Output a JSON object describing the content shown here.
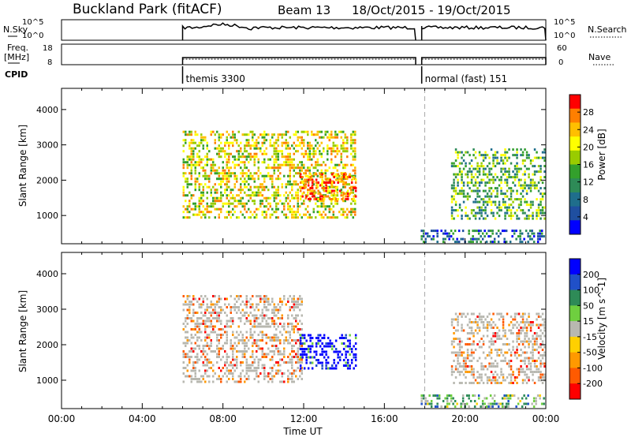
{
  "header": {
    "station": "Buckland Park (fitACF)",
    "beam": "Beam 13",
    "dates": "18/Oct/2015 - 19/Oct/2015"
  },
  "top_panels": {
    "nsky_label": "N.Sky",
    "nsky_ticks": [
      "10^5",
      "10^0"
    ],
    "nsearch_label": "N.Search",
    "nsearch_ticks": [
      "10^5",
      "10^0"
    ],
    "freq_label": "Freq.",
    "freq_unit": "[MHz]",
    "freq_ticks": [
      "18",
      "8"
    ],
    "nave_label": "Nave",
    "nave_ticks": [
      "60",
      "0"
    ],
    "cpid_label": "CPID",
    "cpid_segments": [
      {
        "start": 6.0,
        "end": 17.55,
        "label": "themis 3300"
      },
      {
        "start": 17.85,
        "end": 24.0,
        "label": "normal (fast) 151"
      }
    ]
  },
  "chart_data": [
    {
      "type": "heatmap",
      "parameter": "Power",
      "colorbar_label": "Power [dB]",
      "colorbar_ticks": [
        "28",
        "24",
        "20",
        "16",
        "12",
        "8",
        "4"
      ],
      "colorbar_colors": [
        "#ff0000",
        "#ff7f00",
        "#ffbf00",
        "#ffff00",
        "#99cc00",
        "#33a02c",
        "#2e8b57",
        "#1f6e8c",
        "#1f4fa0",
        "#0000ff"
      ],
      "ylabel": "Slant Range [km]",
      "yticks": [
        1000,
        2000,
        3000,
        4000
      ],
      "ylim": [
        200,
        4600
      ],
      "xlim": [
        0,
        24
      ],
      "gap_marker_hour": 18.0,
      "echo_regions": [
        {
          "t0": 6.0,
          "t1": 14.6,
          "r0": 900,
          "r1": 3400,
          "value_dB": 20
        },
        {
          "t0": 11.8,
          "t1": 14.6,
          "r0": 1400,
          "r1": 2200,
          "value_dB": 27
        },
        {
          "t0": 19.3,
          "t1": 24.0,
          "r0": 900,
          "r1": 2900,
          "value_dB": 14
        },
        {
          "t0": 17.8,
          "t1": 24.0,
          "r0": 200,
          "r1": 600,
          "value_dB": 10
        }
      ]
    },
    {
      "type": "heatmap",
      "parameter": "Velocity",
      "colorbar_label": "Velocity [m s^-1]",
      "colorbar_ticks": [
        "200",
        "100",
        "50",
        "15",
        "-15",
        "-50",
        "-100",
        "-200"
      ],
      "colorbar_colors": [
        "#0000ff",
        "#2050c8",
        "#2e8b57",
        "#6fcf3f",
        "#b8b8b0",
        "#ffd000",
        "#ff9900",
        "#ff5a00",
        "#ff0000"
      ],
      "ylabel": "Slant Range [km]",
      "yticks": [
        1000,
        2000,
        3000,
        4000
      ],
      "ylim": [
        200,
        4600
      ],
      "xlim": [
        0,
        24
      ],
      "gap_marker_hour": 18.0,
      "echo_regions": [
        {
          "t0": 6.0,
          "t1": 12.0,
          "r0": 900,
          "r1": 3400,
          "value_ms": -10
        },
        {
          "t0": 11.8,
          "t1": 14.6,
          "r0": 1300,
          "r1": 2300,
          "value_ms": 200
        },
        {
          "t0": 19.3,
          "t1": 24.0,
          "r0": 900,
          "r1": 2900,
          "value_ms": 0
        },
        {
          "t0": 17.8,
          "t1": 24.0,
          "r0": 200,
          "r1": 600,
          "value_ms": 30
        }
      ]
    }
  ],
  "x_axis": {
    "label": "Time UT",
    "ticks": [
      "00:00",
      "04:00",
      "08:00",
      "12:00",
      "16:00",
      "20:00",
      "00:00"
    ]
  }
}
